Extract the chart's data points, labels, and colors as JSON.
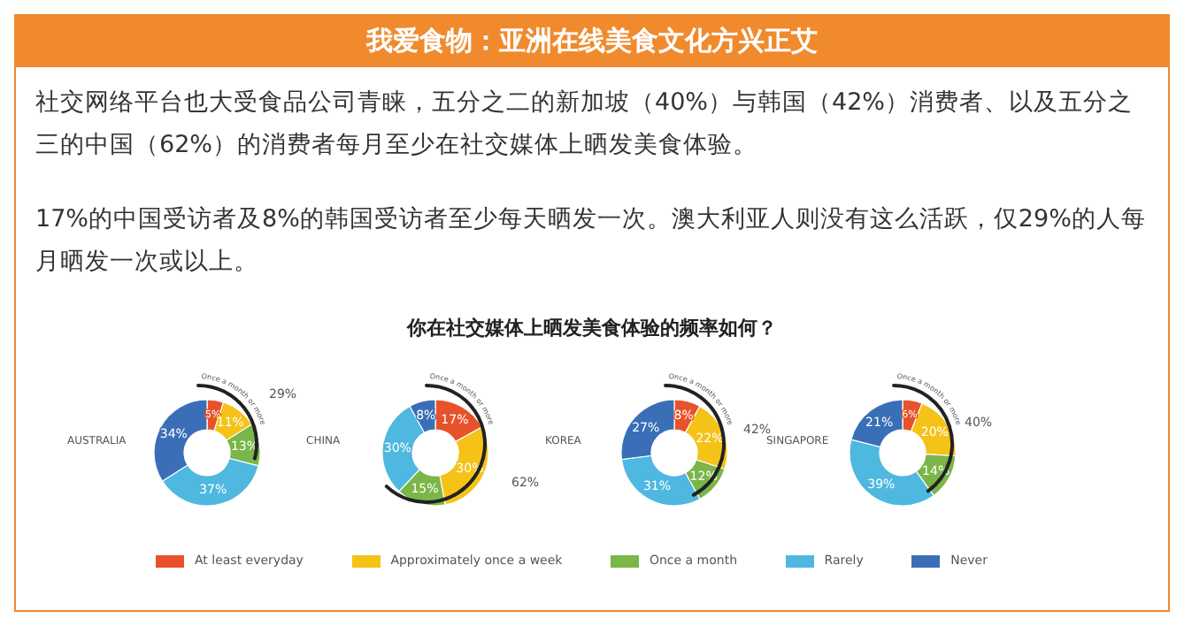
{
  "chart_data": [
    {
      "type": "other",
      "title": "我爱食物：亚洲在线美食文化方兴正艾",
      "annotations": [
        "社交网络平台也大受食品公司青睐，五分之二的新加坡（40%）与韩国（42%）消费者、以及五分之三的中国（62%）的消费者每月至少在社交媒体上晒发美食体验。",
        "17%的中国受访者及8%的韩国受访者至少每天晒发一次。澳大利亚人则没有这么活跃，仅29%的人每月晒发一次或以上。",
        "你在社交媒体上晒发美食体验的频率如何？"
      ]
    },
    {
      "type": "donut",
      "title": "AUSTRALIA",
      "categories": [
        "At least everyday",
        "Approximately once a week",
        "Once a month",
        "Rarely",
        "Never"
      ],
      "values": [
        5,
        11,
        13,
        37,
        34
      ],
      "value_labels": [
        "5%",
        "11%",
        "13%",
        "37%",
        "34%"
      ],
      "colors": [
        "#e8522a",
        "#f5c218",
        "#7ab648",
        "#4fb8e0",
        "#3a6fb7"
      ],
      "annotations": [
        "29%",
        "Once a month or more"
      ],
      "legend": "bottom"
    },
    {
      "type": "donut",
      "title": "CHINA",
      "values": [
        17,
        30,
        15,
        30,
        8
      ],
      "value_labels": [
        "17%",
        "30%",
        "15%",
        "30%",
        "8%"
      ],
      "colors": [
        "#e8522a",
        "#f5c218",
        "#7ab648",
        "#4fb8e0",
        "#3a6fb7"
      ],
      "annotations": [
        "62%",
        "Once a month or more"
      ]
    },
    {
      "type": "donut",
      "title": "KOREA",
      "values": [
        8,
        22,
        12,
        31,
        27
      ],
      "value_labels": [
        "8%",
        "22%",
        "12%",
        "31%",
        "27%"
      ],
      "colors": [
        "#e8522a",
        "#f5c218",
        "#7ab648",
        "#4fb8e0",
        "#3a6fb7"
      ],
      "annotations": [
        "42%",
        "Once a month or more"
      ]
    },
    {
      "type": "donut",
      "title": "SINGAPORE",
      "values": [
        6,
        20,
        14,
        39,
        21
      ],
      "value_labels": [
        "6%",
        "20%",
        "14%",
        "39%",
        "21%"
      ],
      "colors": [
        "#e8522a",
        "#f5c218",
        "#7ab648",
        "#4fb8e0",
        "#3a6fb7"
      ],
      "annotations": [
        "40%",
        "Once a month or more"
      ]
    }
  ]
}
